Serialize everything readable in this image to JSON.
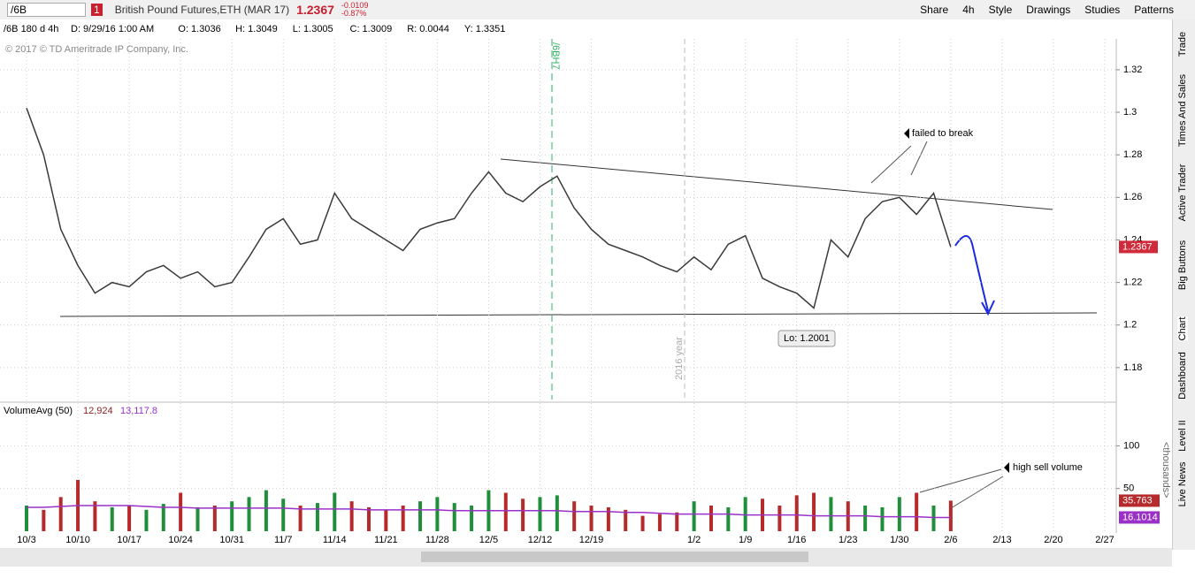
{
  "toolbar": {
    "symbol": "/6B",
    "badge": "1",
    "description": "British Pound Futures,ETH (MAR 17)",
    "last": "1.2367",
    "change": "-0.0109",
    "change_pct": "-0.87%",
    "buttons": [
      "Share",
      "4h",
      "Style",
      "Drawings",
      "Studies",
      "Patterns"
    ]
  },
  "info_bar": {
    "chart_label": "/6B 180 d 4h",
    "items": [
      "D: 9/29/16 1:00 AM",
      "O: 1.3036",
      "H: 1.3049",
      "L: 1.3005",
      "C: 1.3009",
      "R: 0.0044",
      "Y: 1.3351"
    ]
  },
  "side_tabs": [
    "Trade",
    "Times And Sales",
    "Active Trader",
    "Big Buttons",
    "Chart",
    "Dashboard",
    "Level II",
    "Live News"
  ],
  "chart_data": [
    {
      "type": "line",
      "copyright": "© 2017 © TD Ameritrade IP Company, Inc.",
      "categories": [
        "10/3",
        null,
        null,
        "10/10",
        null,
        null,
        "10/17",
        null,
        null,
        "10/24",
        null,
        null,
        "10/31",
        null,
        null,
        "11/7",
        null,
        null,
        "11/14",
        null,
        null,
        "11/21",
        null,
        null,
        "11/28",
        null,
        null,
        "12/5",
        null,
        null,
        "12/12",
        null,
        null,
        "12/19",
        null,
        null,
        null,
        null,
        null,
        "1/2",
        null,
        null,
        "1/9",
        null,
        null,
        "1/16",
        null,
        null,
        "1/23",
        null,
        null,
        "1/30",
        null,
        null,
        "2/6",
        null,
        null,
        "2/13",
        null,
        null,
        "2/20",
        null,
        null,
        "2/27",
        null,
        null
      ],
      "values": [
        1.302,
        1.28,
        1.245,
        1.228,
        1.215,
        1.22,
        1.218,
        1.225,
        1.228,
        1.222,
        1.225,
        1.218,
        1.22,
        1.232,
        1.245,
        1.25,
        1.238,
        1.24,
        1.262,
        1.25,
        1.245,
        1.24,
        1.235,
        1.245,
        1.248,
        1.25,
        1.262,
        1.272,
        1.262,
        1.258,
        1.265,
        1.27,
        1.255,
        1.245,
        1.238,
        1.235,
        1.232,
        1.228,
        1.225,
        1.232,
        1.226,
        1.238,
        1.242,
        1.222,
        1.218,
        1.215,
        1.208,
        1.24,
        1.232,
        1.25,
        1.258,
        1.26,
        1.252,
        1.262,
        1.2367,
        null,
        null,
        null,
        null,
        null,
        null,
        null,
        null,
        null,
        null,
        null
      ],
      "color": "#3a3a3a",
      "ylim": [
        1.165,
        1.3345
      ],
      "yticks": [
        1.18,
        1.2,
        1.22,
        1.24,
        1.26,
        1.28,
        1.3,
        1.32
      ],
      "grid": true,
      "last_label": "1.2367",
      "annotations": {
        "contract": "/6BH7",
        "year": "2016 year",
        "low": "Lo: 1.2001",
        "failed": "failed to break"
      }
    },
    {
      "type": "bar",
      "title": "VolumeAvg (50)",
      "legend_values": [
        "12,924",
        "13,117.8"
      ],
      "axis_label": "<thousands>",
      "values": [
        30,
        25,
        40,
        60,
        35,
        28,
        30,
        25,
        32,
        45,
        28,
        30,
        35,
        40,
        48,
        38,
        30,
        33,
        45,
        35,
        28,
        25,
        30,
        35,
        40,
        33,
        30,
        48,
        45,
        38,
        40,
        42,
        35,
        30,
        28,
        25,
        18,
        20,
        22,
        35,
        30,
        28,
        40,
        38,
        30,
        42,
        45,
        40,
        35,
        30,
        28,
        40,
        45,
        30,
        35.763,
        null,
        null,
        null,
        null,
        null,
        null,
        null,
        null,
        null,
        null,
        null
      ],
      "series": [
        {
          "name": "VolumeAvg (50)",
          "color": "#9b30c8",
          "values": [
            28,
            28,
            29,
            30,
            30,
            30,
            30,
            29,
            28,
            28,
            27,
            27,
            27,
            27,
            27,
            27,
            26,
            26,
            26,
            26,
            25,
            25,
            25,
            25,
            25,
            24,
            24,
            24,
            24,
            24,
            24,
            24,
            23,
            23,
            23,
            22,
            22,
            21,
            20,
            20,
            20,
            20,
            19,
            19,
            19,
            19,
            18,
            18,
            18,
            18,
            17,
            17,
            17,
            16,
            16.1014,
            null,
            null,
            null,
            null,
            null,
            null,
            null,
            null,
            null,
            null,
            null
          ]
        }
      ],
      "ylim": [
        0,
        148
      ],
      "yticks": [
        50,
        100
      ],
      "grid": true,
      "last_labels": [
        "35.763",
        "16.1014"
      ],
      "annotation": "high sell volume"
    }
  ]
}
